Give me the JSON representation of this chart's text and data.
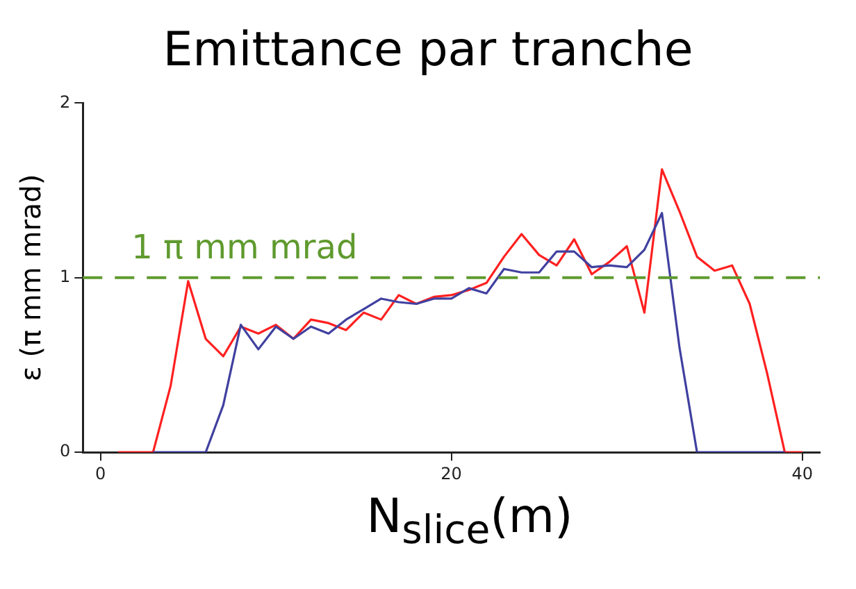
{
  "chart_data": {
    "type": "line",
    "title": "Emittance par tranche",
    "xlabel": "N$_{slice}$(m)",
    "ylabel": "ε (π mm mrad)",
    "xlim": [
      -1,
      41
    ],
    "ylim": [
      0,
      2
    ],
    "xticks": [
      0,
      20,
      40
    ],
    "yticks": [
      0,
      1,
      2
    ],
    "grid": false,
    "legend": false,
    "marker": "none",
    "line_style": "solid",
    "ref_lines": [
      {
        "axis": "y",
        "value": 1,
        "label": "1 π mm mrad",
        "color": "#5f9a2e",
        "line_style": "dashed"
      }
    ],
    "series": [
      {
        "color": "#4040a0",
        "x": [
          3,
          4,
          5,
          6,
          7,
          8,
          9,
          10,
          11,
          12,
          13,
          14,
          15,
          16,
          17,
          18,
          19,
          20,
          21,
          22,
          23,
          24,
          25,
          26,
          27,
          28,
          29,
          30,
          31,
          32,
          33,
          34,
          35,
          36,
          37,
          38,
          39
        ],
        "values": [
          0,
          0,
          0,
          0,
          0.27,
          0.73,
          0.59,
          0.72,
          0.65,
          0.72,
          0.68,
          0.76,
          0.82,
          0.88,
          0.86,
          0.85,
          0.88,
          0.88,
          0.94,
          0.91,
          1.05,
          1.03,
          1.03,
          1.15,
          1.15,
          1.06,
          1.07,
          1.06,
          1.16,
          1.37,
          0.6,
          0,
          0,
          0,
          0,
          0,
          0
        ]
      },
      {
        "color": "#ff2020",
        "x": [
          1,
          2,
          3,
          4,
          5,
          6,
          7,
          8,
          9,
          10,
          11,
          12,
          13,
          14,
          15,
          16,
          17,
          18,
          19,
          20,
          21,
          22,
          23,
          24,
          25,
          26,
          27,
          28,
          29,
          30,
          31,
          32,
          33,
          34,
          35,
          36,
          37,
          38,
          39,
          40
        ],
        "values": [
          0,
          0,
          0,
          0.38,
          0.98,
          0.65,
          0.55,
          0.72,
          0.68,
          0.73,
          0.65,
          0.76,
          0.74,
          0.7,
          0.8,
          0.76,
          0.9,
          0.85,
          0.89,
          0.9,
          0.93,
          0.97,
          1.12,
          1.25,
          1.13,
          1.07,
          1.22,
          1.02,
          1.09,
          1.18,
          0.8,
          1.62,
          1.38,
          1.12,
          1.04,
          1.07,
          0.85,
          0.45,
          0,
          0
        ]
      }
    ]
  }
}
